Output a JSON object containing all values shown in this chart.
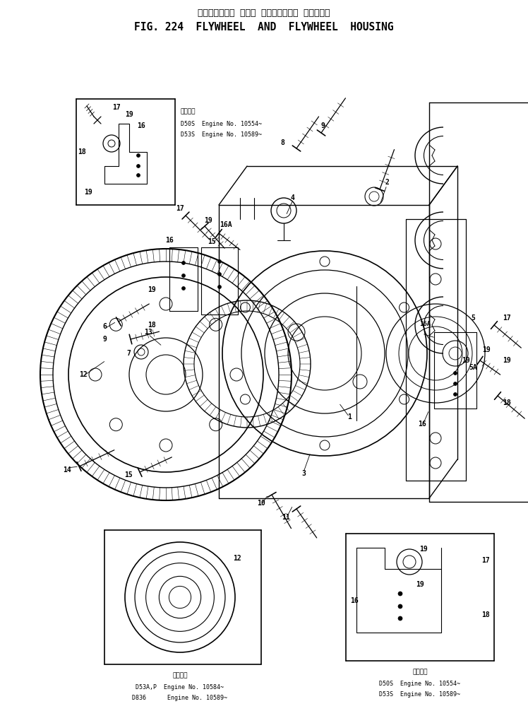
{
  "title_japanese": "フライホイール および フライホイール ハウジング",
  "title_english": "FIG. 224  FLYWHEEL  AND  FLYWHEEL  HOUSING",
  "bg": "#ffffff",
  "lc": "#000000",
  "fig_w": 7.48,
  "fig_h": 10.06,
  "dpi": 100,
  "inset1_note1": "適用中当",
  "inset1_note2": "D50S  Engine No. 10554~",
  "inset1_note3": "D53S  Engine No. 10589~",
  "inset2_note1": "適用中当",
  "inset2_note2": "D53A,P  Engine No. 10584~",
  "inset2_note3": "D836      Engine No. 10589~",
  "inset3_note1": "適用中当",
  "inset3_note2": "D50S  Engine No. 10554~",
  "inset3_note3": "D53S  Engine No. 10589~"
}
